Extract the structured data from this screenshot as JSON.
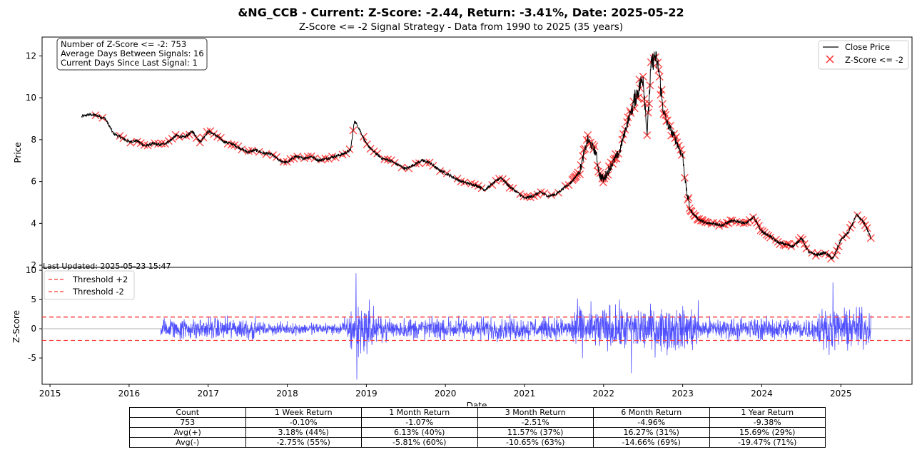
{
  "header": {
    "title": "&NG_CCB - Current: Z-Score: -2.44, Return: -3.41%, Date: 2025-05-22",
    "subtitle": "Z-Score <= -2 Signal Strategy - Data from 1990 to 2025 (35 years)"
  },
  "info_box": {
    "line1": "Number of Z-Score <= -2: 753",
    "line2": "Average Days Between Signals: 16",
    "line3": "Current Days Since Last Signal: 1"
  },
  "last_updated": "Last Updated: 2025-05-23 15:47",
  "colors": {
    "price": "#000000",
    "signal": "#ff2a2a",
    "zscore": "#3333ff",
    "threshold": "#ff3333",
    "zero": "#aaaaaa"
  },
  "chart_data": [
    {
      "type": "line",
      "ylabel": "Price",
      "ylim": [
        1.9,
        12.9
      ],
      "yticks": [
        2,
        4,
        6,
        8,
        10,
        12
      ],
      "xlim": [
        2014.9,
        2025.9
      ],
      "legend_position": "top-right",
      "legend": [
        "Close Price",
        "Z-Score <= -2"
      ],
      "series": [
        {
          "name": "Close Price",
          "x": [
            2015.4,
            2015.5,
            2015.6,
            2015.7,
            2015.8,
            2015.9,
            2016.0,
            2016.1,
            2016.2,
            2016.3,
            2016.4,
            2016.5,
            2016.6,
            2016.7,
            2016.8,
            2016.9,
            2017.0,
            2017.1,
            2017.2,
            2017.3,
            2017.4,
            2017.5,
            2017.6,
            2017.7,
            2017.8,
            2017.9,
            2018.0,
            2018.1,
            2018.2,
            2018.3,
            2018.4,
            2018.5,
            2018.6,
            2018.7,
            2018.8,
            2018.85,
            2018.9,
            2019.0,
            2019.1,
            2019.2,
            2019.3,
            2019.4,
            2019.5,
            2019.6,
            2019.7,
            2019.8,
            2019.9,
            2020.0,
            2020.1,
            2020.2,
            2020.3,
            2020.4,
            2020.5,
            2020.6,
            2020.7,
            2020.8,
            2020.9,
            2021.0,
            2021.1,
            2021.2,
            2021.3,
            2021.4,
            2021.5,
            2021.6,
            2021.7,
            2021.75,
            2021.8,
            2021.9,
            2021.95,
            2022.0,
            2022.1,
            2022.2,
            2022.3,
            2022.4,
            2022.5,
            2022.55,
            2022.6,
            2022.65,
            2022.7,
            2022.75,
            2022.8,
            2022.9,
            2023.0,
            2023.05,
            2023.1,
            2023.2,
            2023.3,
            2023.4,
            2023.5,
            2023.6,
            2023.7,
            2023.8,
            2023.9,
            2024.0,
            2024.1,
            2024.2,
            2024.3,
            2024.4,
            2024.5,
            2024.6,
            2024.7,
            2024.8,
            2024.9,
            2025.0,
            2025.1,
            2025.2,
            2025.3,
            2025.38
          ],
          "y": [
            9.1,
            9.2,
            9.15,
            9.0,
            8.3,
            8.1,
            7.9,
            7.95,
            7.7,
            7.8,
            7.75,
            7.9,
            8.2,
            8.1,
            8.4,
            7.9,
            8.4,
            8.2,
            7.9,
            7.8,
            7.6,
            7.4,
            7.5,
            7.35,
            7.3,
            7.0,
            6.9,
            7.2,
            7.1,
            7.2,
            7.0,
            7.1,
            7.2,
            7.3,
            7.5,
            8.9,
            8.6,
            7.8,
            7.4,
            7.1,
            7.0,
            6.8,
            6.6,
            6.8,
            7.0,
            6.9,
            6.6,
            6.4,
            6.2,
            6.0,
            5.9,
            5.8,
            5.6,
            5.9,
            6.2,
            5.8,
            5.5,
            5.2,
            5.3,
            5.5,
            5.3,
            5.4,
            5.7,
            6.0,
            6.5,
            7.3,
            8.0,
            7.4,
            6.3,
            6.1,
            6.8,
            7.4,
            8.8,
            10.0,
            11.0,
            8.3,
            11.5,
            12.0,
            11.3,
            9.5,
            8.8,
            8.1,
            7.2,
            5.5,
            4.6,
            4.2,
            4.0,
            4.0,
            3.9,
            4.1,
            4.1,
            4.0,
            4.3,
            3.6,
            3.4,
            3.1,
            3.0,
            2.9,
            3.3,
            2.6,
            2.5,
            2.6,
            2.3,
            3.2,
            3.6,
            4.4,
            4.0,
            3.3
          ]
        }
      ],
      "signal_count": 753
    },
    {
      "type": "line",
      "ylabel": "Z-Score",
      "xlabel": "Date",
      "ylim": [
        -9.5,
        10.5
      ],
      "yticks": [
        -5,
        0,
        5,
        10
      ],
      "xticks": [
        "2015",
        "2016",
        "2017",
        "2018",
        "2019",
        "2020",
        "2021",
        "2022",
        "2023",
        "2024",
        "2025"
      ],
      "legend_position": "top-left",
      "legend": [
        "Threshold +2",
        "Threshold -2"
      ],
      "thresholds": [
        2,
        -2
      ],
      "zscore_range": {
        "start": 2016.4,
        "end": 2025.38
      },
      "notable_spikes": [
        {
          "x": 2018.87,
          "y": 9.5
        },
        {
          "x": 2018.88,
          "y": -8.7
        },
        {
          "x": 2024.9,
          "y": 7.9
        },
        {
          "x": 2022.35,
          "y": -7.6
        }
      ]
    }
  ],
  "table": {
    "headers": [
      "Count",
      "1 Week Return",
      "1 Month Return",
      "3 Month Return",
      "6 Month Return",
      "1 Year Return"
    ],
    "rows": [
      [
        "753",
        "-0.10%",
        "-1.07%",
        "-2.51%",
        "-4.96%",
        "-9.38%"
      ],
      [
        "Avg(+)",
        "3.18% (44%)",
        "6.13% (40%)",
        "11.57% (37%)",
        "16.27% (31%)",
        "15.69% (29%)"
      ],
      [
        "Avg(-)",
        "-2.75% (55%)",
        "-5.81% (60%)",
        "-10.65% (63%)",
        "-14.66% (69%)",
        "-19.47% (71%)"
      ]
    ]
  }
}
